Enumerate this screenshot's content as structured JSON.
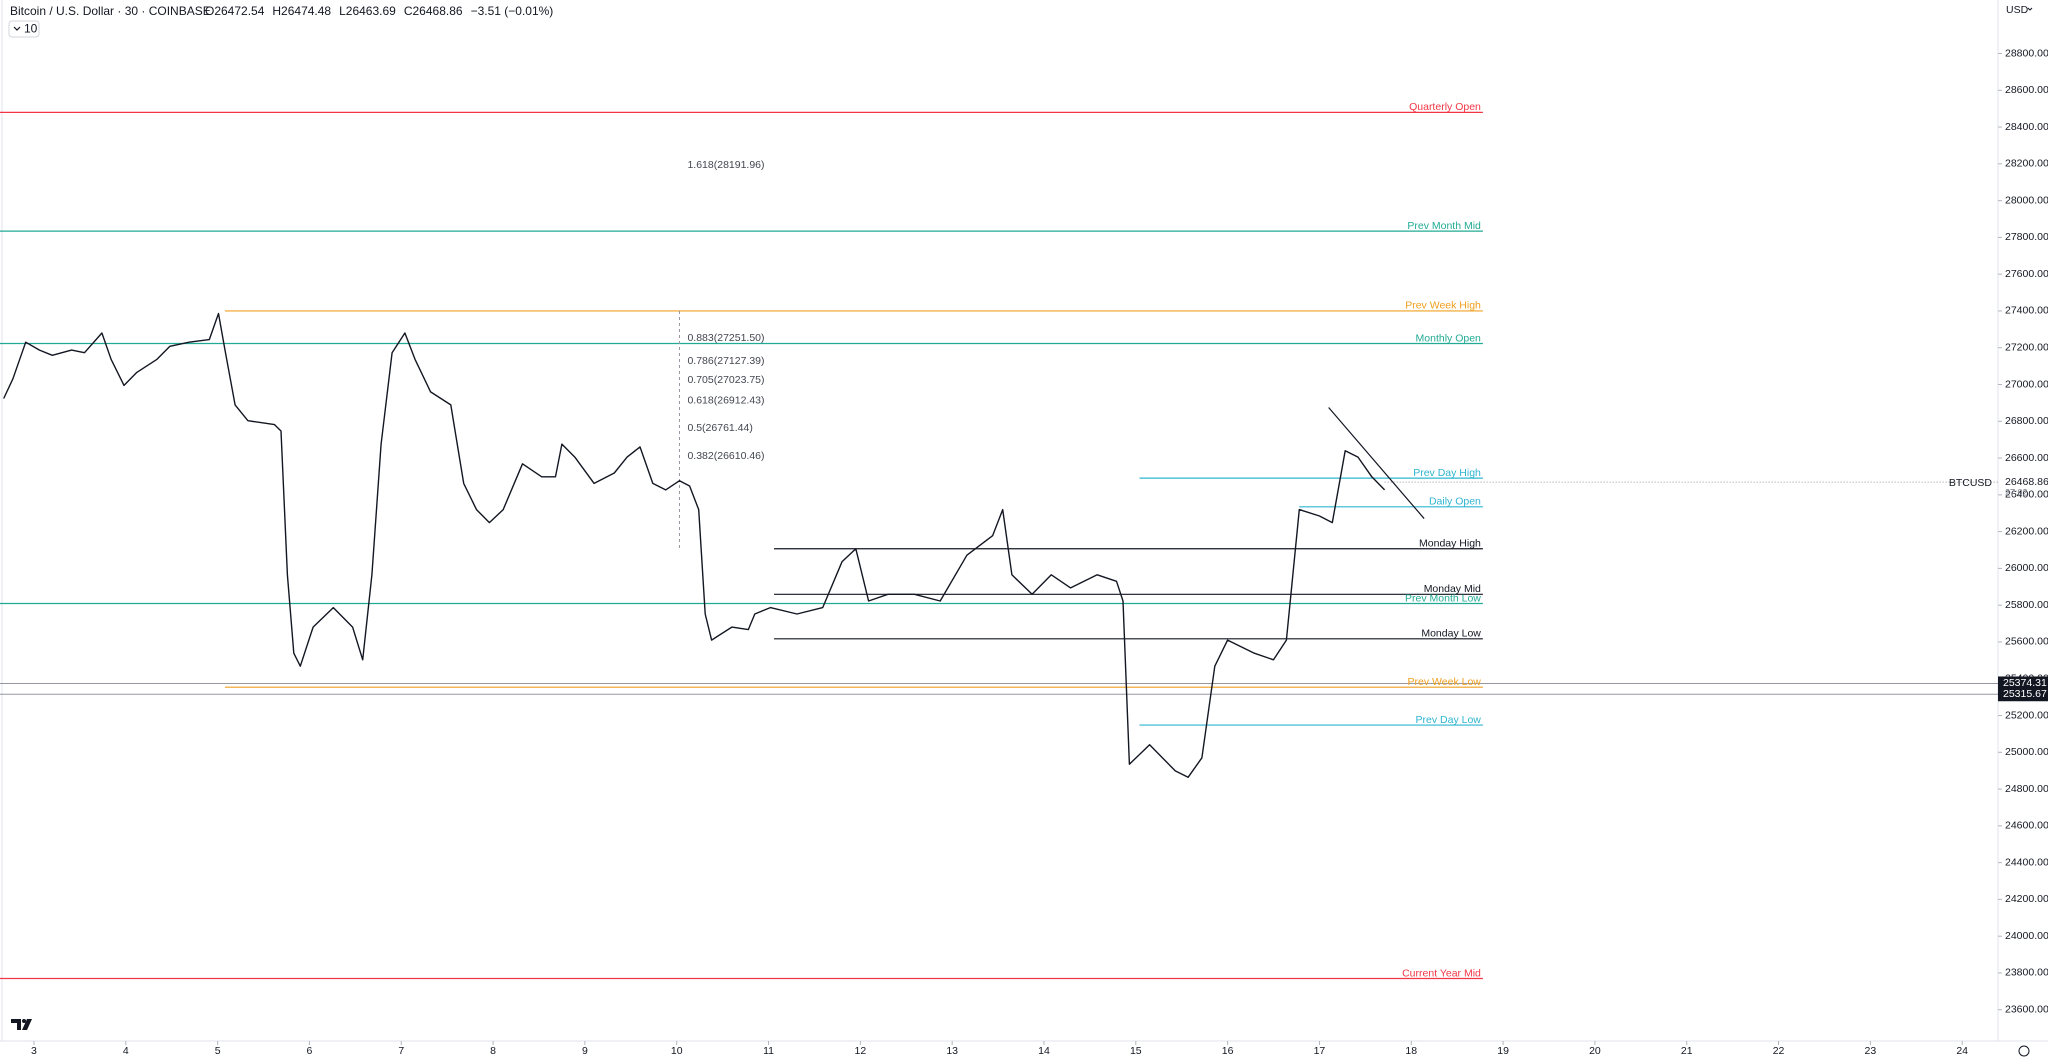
{
  "chart_data": {
    "type": "line",
    "title": "Bitcoin / U.S. Dollar · 30 · COINBASE",
    "ohlc": [
      "O26472.54",
      "H26474.48",
      "L26463.69",
      "C26468.86",
      "−3.51 (−0.01%)"
    ],
    "interval_badge": "10",
    "currency": "USD",
    "xlim": [
      2.63,
      24.39
    ],
    "xticks": [
      3,
      4,
      5,
      6,
      7,
      8,
      9,
      10,
      11,
      12,
      13,
      14,
      15,
      16,
      17,
      18,
      19,
      20,
      21,
      22,
      23,
      24
    ],
    "ylim": [
      23430,
      29091
    ],
    "yticks": [
      {
        "value": 23600,
        "label": "23600.00"
      },
      {
        "value": 23800,
        "label": "23800.00"
      },
      {
        "value": 24000,
        "label": "24000.00"
      },
      {
        "value": 24200,
        "label": "24200.00"
      },
      {
        "value": 24400,
        "label": "24400.00"
      },
      {
        "value": 24600,
        "label": "24600.00"
      },
      {
        "value": 24800,
        "label": "24800.00"
      },
      {
        "value": 25000,
        "label": "25000.00"
      },
      {
        "value": 25200,
        "label": "25200.00"
      },
      {
        "value": 25400,
        "label": "25400.00"
      },
      {
        "value": 25600,
        "label": "25600.00"
      },
      {
        "value": 25800,
        "label": "25800.00"
      },
      {
        "value": 26000,
        "label": "26000.00"
      },
      {
        "value": 26200,
        "label": "26200.00"
      },
      {
        "value": 26400,
        "label": "26400.00"
      },
      {
        "value": 26600,
        "label": "26600.00"
      },
      {
        "value": 26800,
        "label": "26800.00"
      },
      {
        "value": 27000,
        "label": "27000.00"
      },
      {
        "value": 27200,
        "label": "27200.00"
      },
      {
        "value": 27400,
        "label": "27400.00"
      },
      {
        "value": 27600,
        "label": "27600.00"
      },
      {
        "value": 27800,
        "label": "27800.00"
      },
      {
        "value": 28000,
        "label": "28000.00"
      },
      {
        "value": 28200,
        "label": "28200.00"
      },
      {
        "value": 28400,
        "label": "28400.00"
      },
      {
        "value": 28600,
        "label": "28600.00"
      },
      {
        "value": 28800,
        "label": "28800.00"
      }
    ],
    "x": [
      2.67,
      2.77,
      2.91,
      3.06,
      3.2,
      3.41,
      3.55,
      3.74,
      3.84,
      3.98,
      4.12,
      4.34,
      4.48,
      4.69,
      4.91,
      5.01,
      5.08,
      5.19,
      5.33,
      5.62,
      5.69,
      5.76,
      5.83,
      5.9,
      6.04,
      6.26,
      6.47,
      6.58,
      6.68,
      6.78,
      6.9,
      7.04,
      7.15,
      7.32,
      7.54,
      7.68,
      7.82,
      7.96,
      8.11,
      8.32,
      8.53,
      8.68,
      8.75,
      8.89,
      9.1,
      9.32,
      9.46,
      9.6,
      9.74,
      9.88,
      10.03,
      10.14,
      10.24,
      10.31,
      10.38,
      10.6,
      10.78,
      10.85,
      11.02,
      11.31,
      11.59,
      11.8,
      11.95,
      12.09,
      12.3,
      12.59,
      12.87,
      13.16,
      13.44,
      13.55,
      13.65,
      13.87,
      14.08,
      14.29,
      14.58,
      14.79,
      14.86,
      14.93,
      15.15,
      15.43,
      15.57,
      15.72,
      15.86,
      16.0,
      16.29,
      16.5,
      16.64,
      16.78,
      17.0,
      17.14,
      17.28,
      17.42,
      17.57,
      17.71
    ],
    "series": [
      {
        "name": "BTCUSD",
        "color": "#131722",
        "values": [
          26924,
          27031,
          27230,
          27187,
          27159,
          27187,
          27173,
          27280,
          27137,
          26995,
          27066,
          27137,
          27208,
          27230,
          27244,
          27386,
          27187,
          26889,
          26803,
          26782,
          26747,
          25965,
          25539,
          25468,
          25681,
          25787,
          25681,
          25503,
          25965,
          26676,
          27173,
          27280,
          27137,
          26960,
          26889,
          26462,
          26320,
          26249,
          26320,
          26569,
          26498,
          26498,
          26676,
          26605,
          26462,
          26519,
          26605,
          26661,
          26462,
          26427,
          26477,
          26448,
          26320,
          25752,
          25610,
          25681,
          25667,
          25752,
          25787,
          25752,
          25787,
          26036,
          26107,
          25823,
          25859,
          25859,
          25823,
          26072,
          26178,
          26320,
          25965,
          25859,
          25965,
          25894,
          25965,
          25930,
          25823,
          24935,
          25041,
          24899,
          24864,
          24970,
          25468,
          25610,
          25539,
          25503,
          25610,
          26320,
          26285,
          26249,
          26640,
          26605,
          26498,
          26427
        ]
      }
    ],
    "trendline": {
      "x": [
        17.1,
        18.14
      ],
      "values": [
        26875,
        26271
      ],
      "color": "#131722"
    },
    "levels": [
      {
        "name": "Quarterly Open",
        "value": 28480,
        "color": "#f23645",
        "from": 2.63,
        "to": 18.78
      },
      {
        "name": "Prev Month Mid",
        "value": 27834,
        "color": "#22ab94",
        "from": 2.63,
        "to": 18.78
      },
      {
        "name": "Prev Week High",
        "value": 27400,
        "color": "#f0a020",
        "from": 5.08,
        "to": 18.78
      },
      {
        "name": "Monthly Open",
        "value": 27223,
        "color": "#22ab94",
        "from": 2.63,
        "to": 18.78
      },
      {
        "name": "Prev Day High",
        "value": 26491,
        "color": "#2fb5d1",
        "from": 15.04,
        "to": 18.78
      },
      {
        "name": "Daily Open",
        "value": 26335,
        "color": "#2fb5d1",
        "from": 16.78,
        "to": 18.78
      },
      {
        "name": "Monday High",
        "value": 26107,
        "color": "#131722",
        "from": 11.06,
        "to": 18.78
      },
      {
        "name": "Monday Mid",
        "value": 25859,
        "color": "#131722",
        "from": 11.06,
        "to": 18.78
      },
      {
        "name": "Prev Month Low",
        "value": 25809,
        "color": "#22ab94",
        "from": 2.63,
        "to": 18.78
      },
      {
        "name": "Monday Low",
        "value": 25617,
        "color": "#131722",
        "from": 11.06,
        "to": 18.78
      },
      {
        "name": "Prev Week Low",
        "value": 25354,
        "color": "#f0a020",
        "from": 5.08,
        "to": 18.78
      },
      {
        "name": "Prev Day Low",
        "value": 25148,
        "color": "#2fb5d1",
        "from": 15.04,
        "to": 18.78
      },
      {
        "name": "Current Year Mid",
        "value": 23770,
        "color": "#f23645",
        "from": 2.63,
        "to": 18.78
      }
    ],
    "fib": {
      "x": 10.03,
      "levels": [
        {
          "label": "1.618(28191.96)",
          "value": 28191.96
        },
        {
          "label": "0.883(27251.50)",
          "value": 27251.5
        },
        {
          "label": "0.786(27127.39)",
          "value": 27127.39
        },
        {
          "label": "0.705(27023.75)",
          "value": 27023.75
        },
        {
          "label": "0.618(26912.43)",
          "value": 26912.43
        },
        {
          "label": "0.5(26761.44)",
          "value": 26761.44
        },
        {
          "label": "0.382(26610.46)",
          "value": 26610.46
        }
      ]
    },
    "price_tags": [
      25374.31,
      25315.67
    ],
    "last_price": {
      "value": 26468.86,
      "countdown": "27:02"
    }
  }
}
